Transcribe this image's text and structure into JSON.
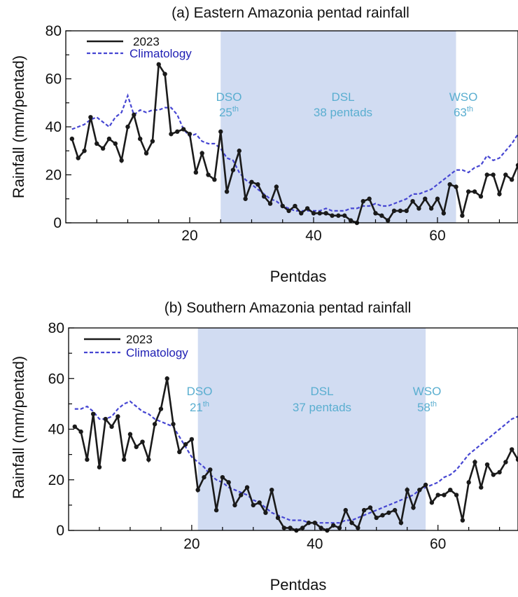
{
  "colors": {
    "obs": "#1a1a1a",
    "clim": "#4646d2",
    "shade": "#d1dcf2",
    "annot": "#5aaed0",
    "legend_clim_text": "#1f1fb4"
  },
  "chart_data": [
    {
      "type": "line",
      "title": "(a) Eastern Amazonia pentad rainfall",
      "xlabel": "Pentdas",
      "ylabel": "Rainfall (mm/pentad)",
      "xlim": [
        0,
        73
      ],
      "ylim": [
        0,
        80
      ],
      "xticks": [
        20,
        40,
        60
      ],
      "yticks": [
        0,
        20,
        40,
        60,
        80
      ],
      "legend": {
        "position": "top-left",
        "entries": [
          "2023",
          "Climatology"
        ]
      },
      "shaded_region": {
        "x": [
          25,
          63
        ]
      },
      "annotations": {
        "dso": {
          "label": "DSO",
          "value": "25",
          "suffix": "th"
        },
        "dsl": {
          "label": "DSL",
          "value": "38 pentads"
        },
        "wso": {
          "label": "WSO",
          "value": "63",
          "suffix": "th"
        }
      },
      "x": [
        1,
        2,
        3,
        4,
        5,
        6,
        7,
        8,
        9,
        10,
        11,
        12,
        13,
        14,
        15,
        16,
        17,
        18,
        19,
        20,
        21,
        22,
        23,
        24,
        25,
        26,
        27,
        28,
        29,
        30,
        31,
        32,
        33,
        34,
        35,
        36,
        37,
        38,
        39,
        40,
        41,
        42,
        43,
        44,
        45,
        46,
        47,
        48,
        49,
        50,
        51,
        52,
        53,
        54,
        55,
        56,
        57,
        58,
        59,
        60,
        61,
        62,
        63,
        64,
        65,
        66,
        67,
        68,
        69,
        70,
        71,
        72,
        73
      ],
      "series": [
        {
          "name": "2023",
          "style": "solid",
          "markers": true,
          "values": [
            35,
            27,
            30,
            44,
            33,
            31,
            35,
            33,
            26,
            40,
            45,
            35,
            29,
            34,
            66,
            62,
            37,
            38,
            39,
            37,
            21,
            29,
            20,
            18,
            38,
            13,
            22,
            30,
            10,
            17,
            16,
            11,
            8,
            15,
            7,
            5,
            7,
            4,
            6,
            4,
            4,
            4,
            3,
            3,
            3,
            1,
            0,
            9,
            10,
            4,
            3,
            1,
            5,
            5,
            5,
            9,
            6,
            10,
            6,
            10,
            4,
            16,
            15,
            3,
            13,
            13,
            11,
            20,
            20,
            12,
            20,
            18,
            24
          ]
        },
        {
          "name": "Climatology",
          "style": "dashed",
          "markers": false,
          "values": [
            39,
            40,
            41,
            43,
            44,
            42,
            40,
            44,
            46,
            53,
            45,
            47,
            46,
            47,
            47,
            48,
            48,
            45,
            39,
            36,
            37,
            34,
            33,
            33,
            31,
            27,
            26,
            21,
            18,
            16,
            14,
            12,
            10,
            9,
            7,
            6,
            5,
            5,
            5,
            5,
            5,
            6,
            5,
            5,
            5,
            6,
            6,
            7,
            7,
            8,
            7,
            7,
            8,
            9,
            10,
            12,
            12,
            13,
            14,
            16,
            18,
            20,
            22,
            22,
            21,
            23,
            24,
            28,
            26,
            27,
            30,
            33,
            37
          ]
        }
      ]
    },
    {
      "type": "line",
      "title": "(b) Southern Amazonia pentad rainfall",
      "xlabel": "Pentdas",
      "ylabel": "Rainfall (mm/pentad)",
      "xlim": [
        0,
        73
      ],
      "ylim": [
        0,
        80
      ],
      "xticks": [
        20,
        40,
        60
      ],
      "yticks": [
        0,
        20,
        40,
        60,
        80
      ],
      "legend": {
        "position": "top-left",
        "entries": [
          "2023",
          "Climatology"
        ]
      },
      "shaded_region": {
        "x": [
          21,
          58
        ]
      },
      "annotations": {
        "dso": {
          "label": "DSO",
          "value": "21",
          "suffix": "th"
        },
        "dsl": {
          "label": "DSL",
          "value": "37 pentads"
        },
        "wso": {
          "label": "WSO",
          "value": "58",
          "suffix": "th"
        }
      },
      "x": [
        1,
        2,
        3,
        4,
        5,
        6,
        7,
        8,
        9,
        10,
        11,
        12,
        13,
        14,
        15,
        16,
        17,
        18,
        19,
        20,
        21,
        22,
        23,
        24,
        25,
        26,
        27,
        28,
        29,
        30,
        31,
        32,
        33,
        34,
        35,
        36,
        37,
        38,
        39,
        40,
        41,
        42,
        43,
        44,
        45,
        46,
        47,
        48,
        49,
        50,
        51,
        52,
        53,
        54,
        55,
        56,
        57,
        58,
        59,
        60,
        61,
        62,
        63,
        64,
        65,
        66,
        67,
        68,
        69,
        70,
        71,
        72,
        73
      ],
      "series": [
        {
          "name": "2023",
          "style": "solid",
          "markers": true,
          "values": [
            41,
            39,
            28,
            46,
            25,
            44,
            41,
            45,
            28,
            38,
            33,
            35,
            28,
            42,
            48,
            60,
            42,
            31,
            34,
            36,
            16,
            21,
            24,
            8,
            21,
            19,
            10,
            14,
            17,
            10,
            11,
            7,
            16,
            5,
            1,
            1,
            0,
            1,
            3,
            3,
            1,
            0,
            2,
            1,
            8,
            3,
            1,
            8,
            9,
            5,
            6,
            7,
            8,
            3,
            16,
            9,
            16,
            18,
            11,
            14,
            14,
            16,
            14,
            4,
            19,
            27,
            17,
            26,
            22,
            23,
            27,
            32,
            28
          ]
        },
        {
          "name": "Climatology",
          "style": "dashed",
          "markers": false,
          "values": [
            48,
            48,
            49,
            47,
            44,
            44,
            45,
            48,
            50,
            51,
            49,
            47,
            46,
            44,
            43,
            42,
            41,
            37,
            33,
            29,
            27,
            25,
            22,
            20,
            19,
            17,
            16,
            15,
            14,
            12,
            11,
            9,
            7,
            6,
            5,
            4,
            4,
            4,
            3,
            3,
            3,
            3,
            3,
            3,
            4,
            4,
            5,
            6,
            7,
            8,
            9,
            10,
            11,
            12,
            13,
            14,
            16,
            17,
            18,
            19,
            21,
            22,
            24,
            27,
            30,
            32,
            34,
            36,
            38,
            40,
            42,
            44,
            45
          ]
        }
      ]
    }
  ]
}
